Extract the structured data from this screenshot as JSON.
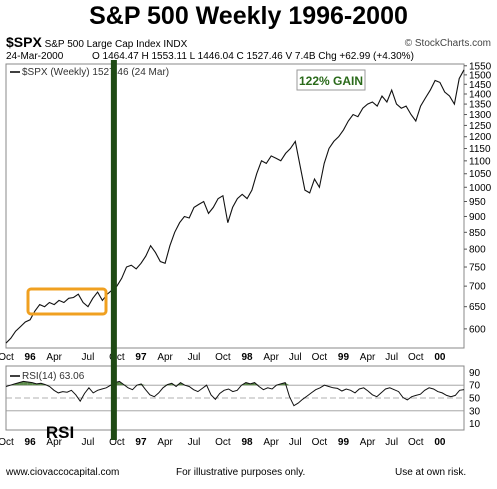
{
  "title": "S&P 500 Weekly 1996-2000",
  "header": {
    "symbol": "$SPX",
    "name": "S&P 500 Large Cap Index",
    "exchange": "INDX",
    "watermark": "© StockCharts.com",
    "date": "24-Mar-2000",
    "ohlc": "O 1464.47  H 1553.11  L 1446.04  C 1527.46  V 7.4B  Chg +62.99 (+4.30%)",
    "legend": "$SPX (Weekly) 1527.46 (24 Mar)"
  },
  "annotations": {
    "gain": "122% GAIN",
    "rsi": "RSI",
    "highlight_color": "#f0a020",
    "marker_color": "#1f4a14",
    "gain_color": "#2a6a1a"
  },
  "rsi": {
    "legend": "RSI(14) 63.06",
    "levels": [
      90,
      70,
      50,
      30,
      10
    ],
    "overbought": 70,
    "oversold": 30,
    "fill_color": "#5c8a4a"
  },
  "footer": {
    "left": "www.ciovaccocapital.com",
    "center": "For illustrative purposes only.",
    "right": "Use at own risk."
  },
  "chart_data": {
    "type": "line",
    "x_labels": [
      "Oct",
      "96",
      "Apr",
      "Jul",
      "Oct",
      "97",
      "Apr",
      "Jul",
      "Oct",
      "98",
      "Apr",
      "Jul",
      "Oct",
      "99",
      "Apr",
      "Jul",
      "Oct",
      "00"
    ],
    "y_ticks": [
      600,
      650,
      700,
      750,
      800,
      850,
      900,
      950,
      1000,
      1050,
      1100,
      1150,
      1200,
      1250,
      1300,
      1350,
      1400,
      1450,
      1500,
      1550
    ],
    "ylim": [
      560,
      1560
    ],
    "log_scale": true,
    "marker_label": "Oct",
    "series": [
      {
        "name": "$SPX (Weekly)",
        "points": [
          [
            "Oct",
            570
          ],
          [
            "",
            580
          ],
          [
            "",
            595
          ],
          [
            "",
            605
          ],
          [
            "",
            615
          ],
          [
            "96",
            620
          ],
          [
            "",
            640
          ],
          [
            "",
            655
          ],
          [
            "",
            650
          ],
          [
            "",
            660
          ],
          [
            "Apr",
            655
          ],
          [
            "",
            665
          ],
          [
            "",
            660
          ],
          [
            "",
            670
          ],
          [
            "",
            672
          ],
          [
            "",
            680
          ],
          [
            "",
            660
          ],
          [
            "Jul",
            650
          ],
          [
            "",
            670
          ],
          [
            "",
            685
          ],
          [
            "",
            665
          ],
          [
            "",
            680
          ],
          [
            "",
            690
          ],
          [
            "Oct",
            700
          ],
          [
            "",
            720
          ],
          [
            "",
            750
          ],
          [
            "",
            755
          ],
          [
            "",
            745
          ],
          [
            "97",
            760
          ],
          [
            "",
            780
          ],
          [
            "",
            810
          ],
          [
            "",
            790
          ],
          [
            "",
            765
          ],
          [
            "Apr",
            760
          ],
          [
            "",
            810
          ],
          [
            "",
            850
          ],
          [
            "",
            880
          ],
          [
            "",
            900
          ],
          [
            "",
            895
          ],
          [
            "Jul",
            930
          ],
          [
            "",
            940
          ],
          [
            "",
            950
          ],
          [
            "",
            910
          ],
          [
            "",
            930
          ],
          [
            "",
            960
          ],
          [
            "Oct",
            970
          ],
          [
            "",
            880
          ],
          [
            "",
            930
          ],
          [
            "",
            960
          ],
          [
            "",
            975
          ],
          [
            "98",
            960
          ],
          [
            "",
            990
          ],
          [
            "",
            1050
          ],
          [
            "",
            1100
          ],
          [
            "",
            1090
          ],
          [
            "Apr",
            1120
          ],
          [
            "",
            1110
          ],
          [
            "",
            1100
          ],
          [
            "",
            1130
          ],
          [
            "",
            1150
          ],
          [
            "Jul",
            1180
          ],
          [
            "",
            1080
          ],
          [
            "",
            990
          ],
          [
            "",
            980
          ],
          [
            "",
            1030
          ],
          [
            "Oct",
            1000
          ],
          [
            "",
            1090
          ],
          [
            "",
            1150
          ],
          [
            "",
            1180
          ],
          [
            "",
            1200
          ],
          [
            "99",
            1230
          ],
          [
            "",
            1270
          ],
          [
            "",
            1300
          ],
          [
            "",
            1290
          ],
          [
            "",
            1330
          ],
          [
            "Apr",
            1350
          ],
          [
            "",
            1360
          ],
          [
            "",
            1340
          ],
          [
            "",
            1390
          ],
          [
            "",
            1360
          ],
          [
            "Jul",
            1420
          ],
          [
            "",
            1350
          ],
          [
            "",
            1330
          ],
          [
            "",
            1340
          ],
          [
            "",
            1300
          ],
          [
            "Oct",
            1270
          ],
          [
            "",
            1340
          ],
          [
            "",
            1380
          ],
          [
            "",
            1420
          ],
          [
            "",
            1470
          ],
          [
            "00",
            1460
          ],
          [
            "",
            1410
          ],
          [
            "",
            1390
          ],
          [
            "",
            1350
          ],
          [
            "",
            1480
          ],
          [
            "",
            1527.46
          ]
        ]
      },
      {
        "name": "RSI(14)",
        "values": [
          68,
          70,
          72,
          74,
          76,
          75,
          74,
          72,
          73,
          71,
          68,
          62,
          58,
          60,
          59,
          62,
          55,
          45,
          57,
          66,
          58,
          62,
          64,
          66,
          70,
          74,
          76,
          71,
          66,
          63,
          70,
          72,
          63,
          55,
          52,
          58,
          66,
          71,
          73,
          68,
          74,
          70,
          68,
          63,
          60,
          65,
          70,
          55,
          48,
          57,
          62,
          64,
          60,
          62,
          70,
          74,
          72,
          74,
          68,
          63,
          66,
          64,
          70,
          72,
          74,
          52,
          38,
          42,
          48,
          53,
          58,
          63,
          66,
          70,
          68,
          66,
          65,
          61,
          64,
          62,
          58,
          64,
          66,
          61,
          55,
          52,
          58,
          64,
          66,
          63,
          60,
          51,
          47,
          52,
          54,
          56,
          62,
          66,
          64,
          60,
          58,
          54,
          52,
          54,
          62,
          63.06
        ],
        "ylim": [
          0,
          100
        ]
      }
    ]
  }
}
